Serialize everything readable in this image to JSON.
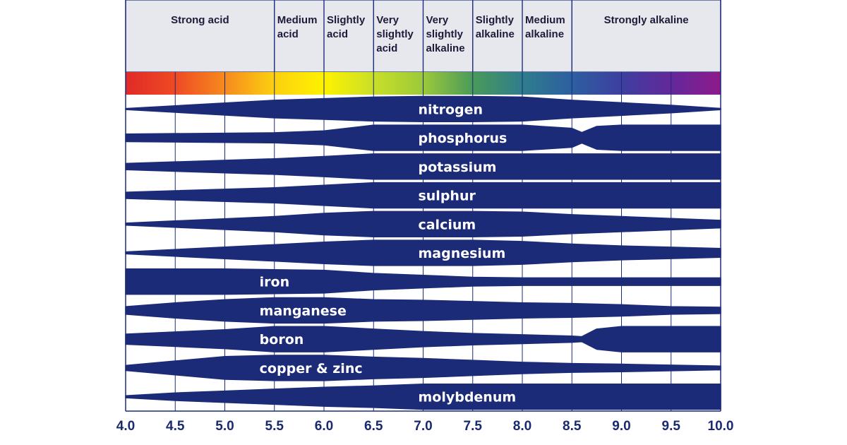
{
  "chart_data": {
    "type": "area",
    "x_ticks": [
      "4.0",
      "4.5",
      "5.0",
      "5.5",
      "6.0",
      "6.5",
      "7.0",
      "7.5",
      "8.0",
      "8.5",
      "9.0",
      "9.5",
      "10.0"
    ],
    "xlim": [
      4.0,
      10.0
    ],
    "categories": [
      {
        "lines": [
          "Strong acid"
        ],
        "from": 4.0,
        "to": 5.5
      },
      {
        "lines": [
          "Medium",
          "acid"
        ],
        "from": 5.5,
        "to": 6.0
      },
      {
        "lines": [
          "Slightly",
          "acid"
        ],
        "from": 6.0,
        "to": 6.5
      },
      {
        "lines": [
          "Very",
          "slightly",
          "acid"
        ],
        "from": 6.5,
        "to": 7.0
      },
      {
        "lines": [
          "Very",
          "slightly",
          "alkaline"
        ],
        "from": 7.0,
        "to": 7.5
      },
      {
        "lines": [
          "Slightly",
          "alkaline"
        ],
        "from": 7.5,
        "to": 8.0
      },
      {
        "lines": [
          "Medium",
          "alkaline"
        ],
        "from": 8.0,
        "to": 8.5
      },
      {
        "lines": [
          "Strongly alkaline"
        ],
        "from": 8.5,
        "to": 10.0
      }
    ],
    "color_scale": [
      "#e02a28",
      "#ef4a24",
      "#f68a1e",
      "#fcd010",
      "#fff200",
      "#c9df28",
      "#9cc93a",
      "#4a9a5a",
      "#2f7d8c",
      "#2d5fa0",
      "#3d3f9f",
      "#63289a",
      "#8e1a8b"
    ],
    "band_color": "#1c2b78",
    "series": [
      {
        "name": "nitrogen",
        "label_x": 6.95,
        "points": [
          [
            4.0,
            0.03
          ],
          [
            5.5,
            0.7
          ],
          [
            6.0,
            0.82
          ],
          [
            6.5,
            0.95
          ],
          [
            7.0,
            1.0
          ],
          [
            7.5,
            1.0
          ],
          [
            8.0,
            0.95
          ],
          [
            8.5,
            0.7
          ],
          [
            9.0,
            0.5
          ],
          [
            9.5,
            0.3
          ],
          [
            10.0,
            0.05
          ]
        ]
      },
      {
        "name": "phosphorus",
        "label_x": 6.95,
        "points": [
          [
            4.0,
            0.3
          ],
          [
            5.5,
            0.4
          ],
          [
            6.0,
            0.55
          ],
          [
            6.5,
            1.0
          ],
          [
            7.0,
            1.0
          ],
          [
            7.5,
            1.0
          ],
          [
            8.0,
            1.0
          ],
          [
            8.5,
            0.75
          ],
          [
            8.6,
            0.42
          ],
          [
            8.75,
            0.9
          ],
          [
            9.0,
            1.0
          ],
          [
            10.0,
            1.0
          ]
        ]
      },
      {
        "name": "potassium",
        "label_x": 6.95,
        "points": [
          [
            4.0,
            0.25
          ],
          [
            5.5,
            0.62
          ],
          [
            6.0,
            0.8
          ],
          [
            6.5,
            1.0
          ],
          [
            7.0,
            1.0
          ],
          [
            8.0,
            1.0
          ],
          [
            10.0,
            1.0
          ]
        ]
      },
      {
        "name": "sulphur",
        "label_x": 6.95,
        "points": [
          [
            4.0,
            0.25
          ],
          [
            5.5,
            0.6
          ],
          [
            6.0,
            0.8
          ],
          [
            6.5,
            1.0
          ],
          [
            7.0,
            1.0
          ],
          [
            8.0,
            1.0
          ],
          [
            10.0,
            1.0
          ]
        ]
      },
      {
        "name": "calcium",
        "label_x": 6.95,
        "points": [
          [
            4.0,
            0.08
          ],
          [
            5.5,
            0.6
          ],
          [
            6.0,
            0.85
          ],
          [
            6.5,
            1.0
          ],
          [
            7.0,
            1.0
          ],
          [
            7.5,
            1.0
          ],
          [
            8.0,
            0.95
          ],
          [
            8.5,
            0.75
          ],
          [
            9.0,
            0.6
          ],
          [
            9.5,
            0.45
          ],
          [
            10.0,
            0.3
          ]
        ]
      },
      {
        "name": "magnesium",
        "label_x": 6.95,
        "points": [
          [
            4.0,
            0.08
          ],
          [
            5.5,
            0.65
          ],
          [
            6.0,
            0.85
          ],
          [
            6.5,
            1.0
          ],
          [
            7.0,
            1.0
          ],
          [
            7.5,
            1.0
          ],
          [
            8.0,
            0.9
          ],
          [
            8.5,
            0.7
          ],
          [
            9.0,
            0.55
          ],
          [
            9.5,
            0.45
          ],
          [
            10.0,
            0.35
          ]
        ]
      },
      {
        "name": "iron",
        "label_x": 5.35,
        "points": [
          [
            4.0,
            1.0
          ],
          [
            5.0,
            1.0
          ],
          [
            5.5,
            0.95
          ],
          [
            6.0,
            0.9
          ],
          [
            6.5,
            0.65
          ],
          [
            7.0,
            0.5
          ],
          [
            7.5,
            0.35
          ],
          [
            8.0,
            0.3
          ],
          [
            8.5,
            0.3
          ],
          [
            9.0,
            0.3
          ],
          [
            10.0,
            0.3
          ]
        ]
      },
      {
        "name": "manganese",
        "label_x": 5.35,
        "points": [
          [
            4.0,
            0.3
          ],
          [
            4.5,
            0.6
          ],
          [
            5.0,
            0.85
          ],
          [
            5.5,
            1.0
          ],
          [
            6.0,
            1.0
          ],
          [
            6.5,
            0.85
          ],
          [
            7.0,
            0.8
          ],
          [
            7.5,
            0.7
          ],
          [
            8.0,
            0.6
          ],
          [
            8.5,
            0.55
          ],
          [
            9.0,
            0.45
          ],
          [
            9.5,
            0.3
          ],
          [
            10.0,
            0.25
          ]
        ]
      },
      {
        "name": "boron",
        "label_x": 5.35,
        "points": [
          [
            4.0,
            0.4
          ],
          [
            5.0,
            0.75
          ],
          [
            5.5,
            1.0
          ],
          [
            6.0,
            1.0
          ],
          [
            6.5,
            0.8
          ],
          [
            7.0,
            0.6
          ],
          [
            7.5,
            0.45
          ],
          [
            8.0,
            0.35
          ],
          [
            8.5,
            0.25
          ],
          [
            8.6,
            0.2
          ],
          [
            8.75,
            0.8
          ],
          [
            9.0,
            1.0
          ],
          [
            10.0,
            1.0
          ]
        ]
      },
      {
        "name": "copper & zinc",
        "label_x": 5.35,
        "points": [
          [
            4.0,
            0.2
          ],
          [
            4.5,
            0.55
          ],
          [
            5.0,
            0.9
          ],
          [
            5.5,
            1.0
          ],
          [
            6.0,
            1.0
          ],
          [
            6.5,
            0.85
          ],
          [
            7.0,
            0.75
          ],
          [
            7.5,
            0.6
          ],
          [
            8.0,
            0.45
          ],
          [
            8.5,
            0.35
          ],
          [
            9.0,
            0.3
          ],
          [
            10.0,
            0.15
          ]
        ]
      },
      {
        "name": "molybdenum",
        "label_x": 6.95,
        "points": [
          [
            4.0,
            0.08
          ],
          [
            4.5,
            0.3
          ],
          [
            5.0,
            0.45
          ],
          [
            5.5,
            0.6
          ],
          [
            6.0,
            0.75
          ],
          [
            6.5,
            0.85
          ],
          [
            7.0,
            1.0
          ],
          [
            8.0,
            1.0
          ],
          [
            10.0,
            1.0
          ]
        ]
      }
    ]
  }
}
